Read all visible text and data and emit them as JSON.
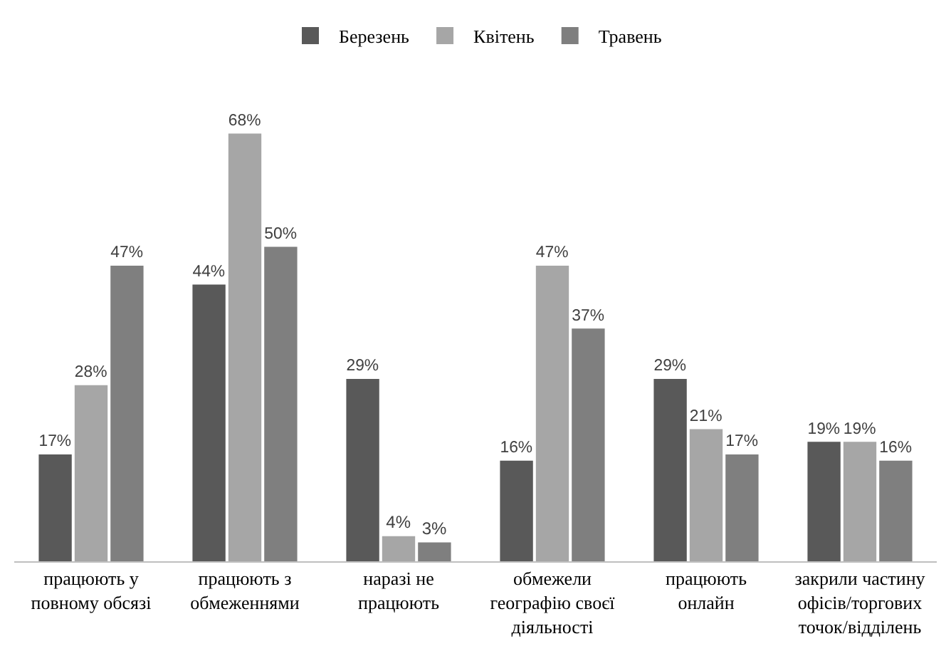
{
  "chart_data": {
    "type": "bar",
    "categories": [
      "працюють у\nповному обсязі",
      "працюють з\nобмеженнями",
      "наразі не\nпрацюють",
      "обмежели\nгеографію своєї\nдіяльності",
      "працюють\nонлайн",
      "закрили частину\nофісів/торгових\nточок/відділень"
    ],
    "series": [
      {
        "name": "Березень",
        "color": "#595959",
        "values": [
          17,
          44,
          29,
          16,
          29,
          19
        ],
        "value_labels": [
          "17%",
          "44%",
          "29%",
          "16%",
          "29%",
          "19%"
        ]
      },
      {
        "name": "Квітень",
        "color": "#a6a6a6",
        "values": [
          28,
          68,
          4,
          47,
          21,
          19
        ],
        "value_labels": [
          "28%",
          "68%",
          "4%",
          "47%",
          "21%",
          "19%"
        ]
      },
      {
        "name": "Травень",
        "color": "#7f7f7f",
        "values": [
          47,
          50,
          3,
          37,
          17,
          16
        ],
        "value_labels": [
          "47%",
          "50%",
          "3%",
          "37%",
          "17%",
          "16%"
        ]
      }
    ],
    "legend": "top",
    "grid": false
  }
}
